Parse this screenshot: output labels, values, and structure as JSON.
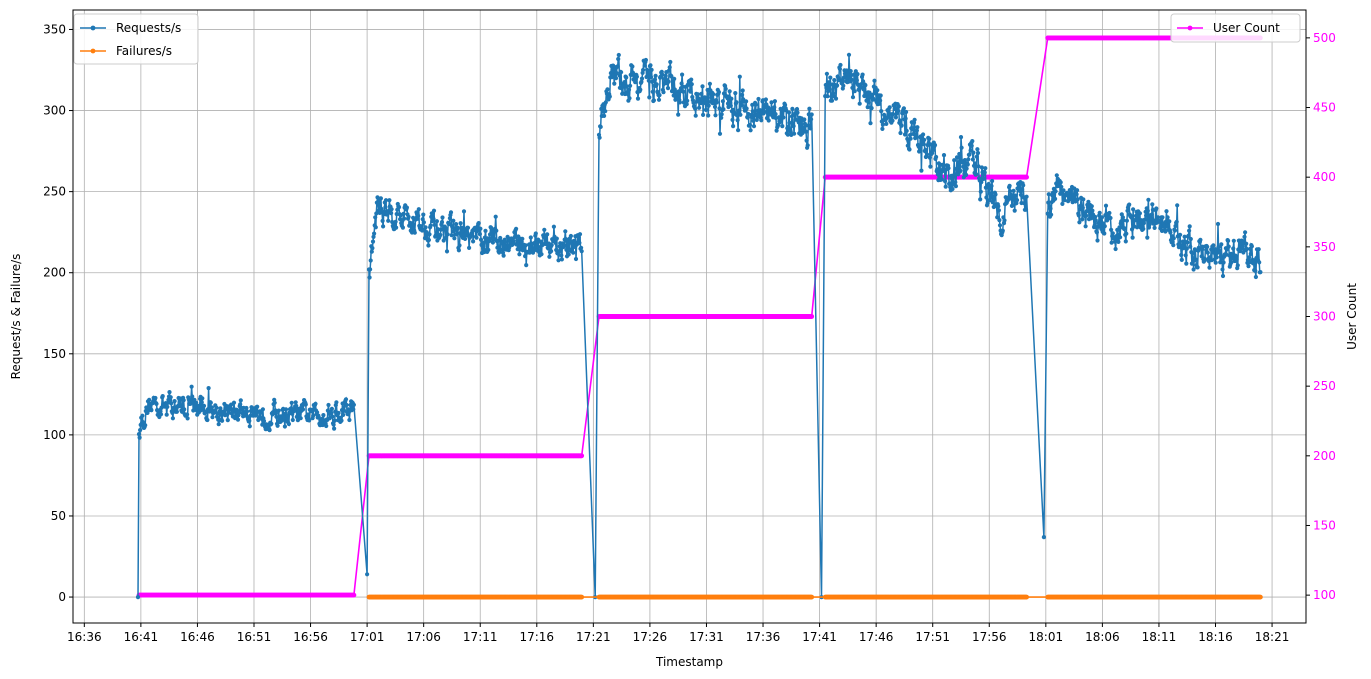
{
  "chart_data": {
    "type": "line",
    "xlabel": "Timestamp",
    "ylabel_left": "Request/s & Failure/s",
    "ylabel_right": "User Count",
    "x_range": [
      "16:35",
      "18:24"
    ],
    "ylim_left": [
      -16,
      362
    ],
    "ylim_right": [
      80,
      520
    ],
    "x_ticks": [
      "16:36",
      "16:41",
      "16:46",
      "16:51",
      "16:56",
      "17:01",
      "17:06",
      "17:11",
      "17:16",
      "17:21",
      "17:26",
      "17:31",
      "17:36",
      "17:41",
      "17:46",
      "17:51",
      "17:56",
      "18:01",
      "18:06",
      "18:11",
      "18:16",
      "18:21"
    ],
    "y_ticks_left": [
      0,
      50,
      100,
      150,
      200,
      250,
      300,
      350
    ],
    "y_ticks_right": [
      100,
      150,
      200,
      250,
      300,
      350,
      400,
      450,
      500
    ],
    "grid": true,
    "legend_left": {
      "placement": "top-left",
      "entries": [
        "Requests/s",
        "Failures/s"
      ]
    },
    "legend_right": {
      "placement": "top-right",
      "entries": [
        "User Count"
      ]
    },
    "colors": {
      "requests": "#1f77b4",
      "failures": "#ff7f0e",
      "users": "#ff00ff"
    },
    "series": [
      {
        "name": "Requests/s",
        "axis": "left",
        "color": "#1f77b4",
        "segments": [
          {
            "start": "16:40:50",
            "end": "16:59:50",
            "mean": 113,
            "amp": 8,
            "peaks": [
              [
                0,
                105
              ],
              [
                0.05,
                120
              ],
              [
                0.4,
                115
              ],
              [
                0.75,
                112
              ],
              [
                1,
                115
              ]
            ]
          },
          {
            "start": "17:01:10",
            "end": "17:20:00",
            "mean": 218,
            "amp": 10,
            "peaks": [
              [
                0,
                200
              ],
              [
                0.04,
                240
              ],
              [
                0.5,
                220
              ],
              [
                1,
                215
              ]
            ]
          },
          {
            "start": "17:21:30",
            "end": "17:40:20",
            "mean": 305,
            "amp": 12,
            "peaks": [
              [
                0,
                290
              ],
              [
                0.05,
                320
              ],
              [
                0.35,
                315
              ],
              [
                0.7,
                300
              ],
              [
                1,
                290
              ]
            ]
          },
          {
            "start": "17:41:30",
            "end": "17:59:20",
            "mean": 280,
            "amp": 12,
            "peaks": [
              [
                0,
                310
              ],
              [
                0.1,
                320
              ],
              [
                0.4,
                290
              ],
              [
                0.6,
                260
              ],
              [
                0.75,
                270
              ],
              [
                0.85,
                240
              ],
              [
                1,
                245
              ]
            ]
          },
          {
            "start": "18:01:10",
            "end": "18:20:00",
            "mean": 220,
            "amp": 11,
            "peaks": [
              [
                0,
                240
              ],
              [
                0.05,
                250
              ],
              [
                0.3,
                225
              ],
              [
                0.5,
                235
              ],
              [
                0.7,
                210
              ],
              [
                1,
                210
              ]
            ]
          }
        ],
        "transitions": [
          {
            "at": "16:40:45",
            "from": 0,
            "to": 105
          },
          {
            "at": "17:01:00",
            "from": 14,
            "to": 150
          },
          {
            "at": "17:21:10",
            "from": 0,
            "to": 260
          },
          {
            "at": "17:41:10",
            "from": 0,
            "to": 260
          },
          {
            "at": "18:00:50",
            "from": 37,
            "to": 200
          }
        ]
      },
      {
        "name": "Failures/s",
        "axis": "left",
        "color": "#ff7f0e",
        "value": 0,
        "segments": [
          {
            "start": "17:01:10",
            "end": "17:20:00"
          },
          {
            "start": "17:21:30",
            "end": "17:40:20"
          },
          {
            "start": "17:41:30",
            "end": "17:59:20"
          },
          {
            "start": "18:01:10",
            "end": "18:20:00"
          }
        ]
      },
      {
        "name": "User Count",
        "axis": "right",
        "color": "#ff00ff",
        "steps": [
          {
            "start": "16:40:50",
            "end": "16:59:50",
            "value": 100
          },
          {
            "start": "17:01:10",
            "end": "17:20:00",
            "value": 200
          },
          {
            "start": "17:21:30",
            "end": "17:40:20",
            "value": 300
          },
          {
            "start": "17:41:30",
            "end": "17:59:20",
            "value": 400
          },
          {
            "start": "18:01:10",
            "end": "18:20:00",
            "value": 500
          }
        ]
      }
    ]
  }
}
